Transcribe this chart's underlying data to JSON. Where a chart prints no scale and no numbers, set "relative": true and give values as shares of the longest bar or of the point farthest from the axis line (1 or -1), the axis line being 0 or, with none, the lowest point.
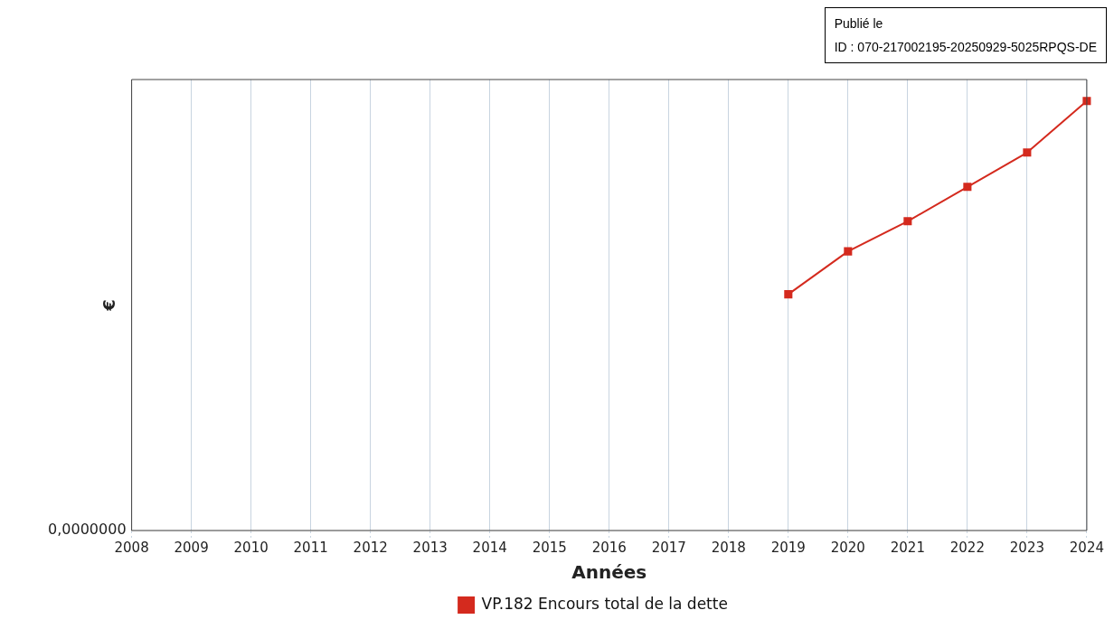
{
  "chart_data": {
    "type": "line",
    "xlabel": "Années",
    "ylabel": "€",
    "categories": [
      "2008",
      "2009",
      "2010",
      "2011",
      "2012",
      "2013",
      "2014",
      "2015",
      "2016",
      "2017",
      "2018",
      "2019",
      "2020",
      "2021",
      "2022",
      "2023",
      "2024"
    ],
    "series": [
      {
        "name": "VP.182 Encours total de la dette",
        "color": "#d42a1e",
        "values": [
          null,
          null,
          null,
          null,
          null,
          null,
          null,
          null,
          null,
          null,
          null,
          0.55,
          0.65,
          0.72,
          0.8,
          0.88,
          1
        ]
      }
    ],
    "relative": true,
    "marker": "square",
    "line_style": "solid",
    "grid": "x",
    "legend": "bottom",
    "annotations": [
      "0,0000000",
      "Publié le",
      "ID : 070-217002195-20250929-5025RPQS-DE"
    ]
  }
}
